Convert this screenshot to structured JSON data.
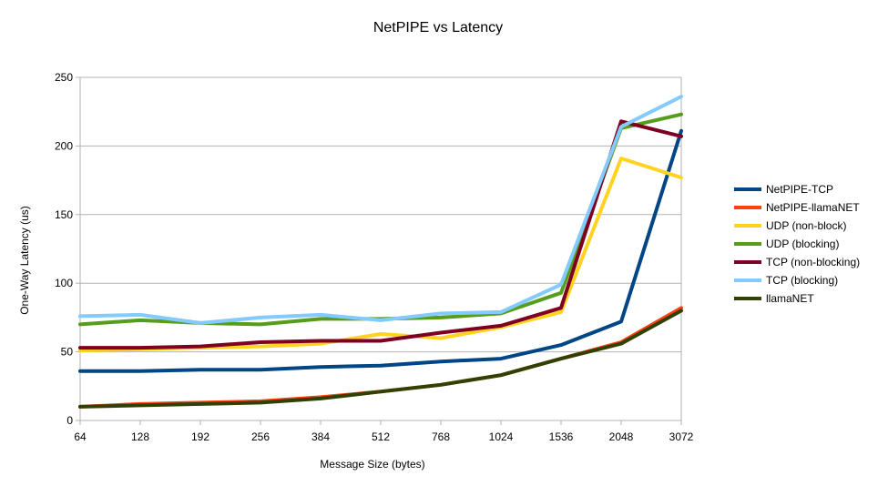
{
  "chart_data": {
    "type": "line",
    "title": "NetPIPE vs Latency",
    "xlabel": "Message Size (bytes)",
    "ylabel": "One-Way Latency (us)",
    "categories": [
      "64",
      "128",
      "192",
      "256",
      "384",
      "512",
      "768",
      "1024",
      "1536",
      "2048",
      "3072"
    ],
    "ylim": [
      0,
      250
    ],
    "yticks": [
      0,
      50,
      100,
      150,
      200,
      250
    ],
    "grid": true,
    "legend_position": "right",
    "series": [
      {
        "name": "NetPIPE-TCP",
        "color": "#004586",
        "values": [
          36,
          36,
          37,
          37,
          39,
          40,
          43,
          45,
          55,
          72,
          211
        ]
      },
      {
        "name": "NetPIPE-llamaNET",
        "color": "#ff420e",
        "values": [
          10,
          12,
          13,
          14,
          17,
          21,
          26,
          33,
          45,
          57,
          82
        ]
      },
      {
        "name": "UDP (non-block)",
        "color": "#ffd320",
        "values": [
          51,
          52,
          53,
          54,
          56,
          63,
          60,
          68,
          79,
          191,
          177
        ]
      },
      {
        "name": "UDP (blocking)",
        "color": "#579d1c",
        "values": [
          70,
          73,
          71,
          70,
          74,
          74,
          75,
          78,
          93,
          213,
          223
        ]
      },
      {
        "name": "TCP (non-blocking)",
        "color": "#7e0021",
        "values": [
          53,
          53,
          54,
          57,
          58,
          58,
          64,
          69,
          82,
          218,
          207
        ]
      },
      {
        "name": "TCP (blocking)",
        "color": "#83caff",
        "values": [
          76,
          77,
          71,
          75,
          77,
          73,
          78,
          79,
          99,
          214,
          236
        ]
      },
      {
        "name": "llamaNET",
        "color": "#314004",
        "values": [
          10,
          11,
          12,
          13,
          16,
          21,
          26,
          33,
          45,
          56,
          80
        ]
      }
    ]
  }
}
